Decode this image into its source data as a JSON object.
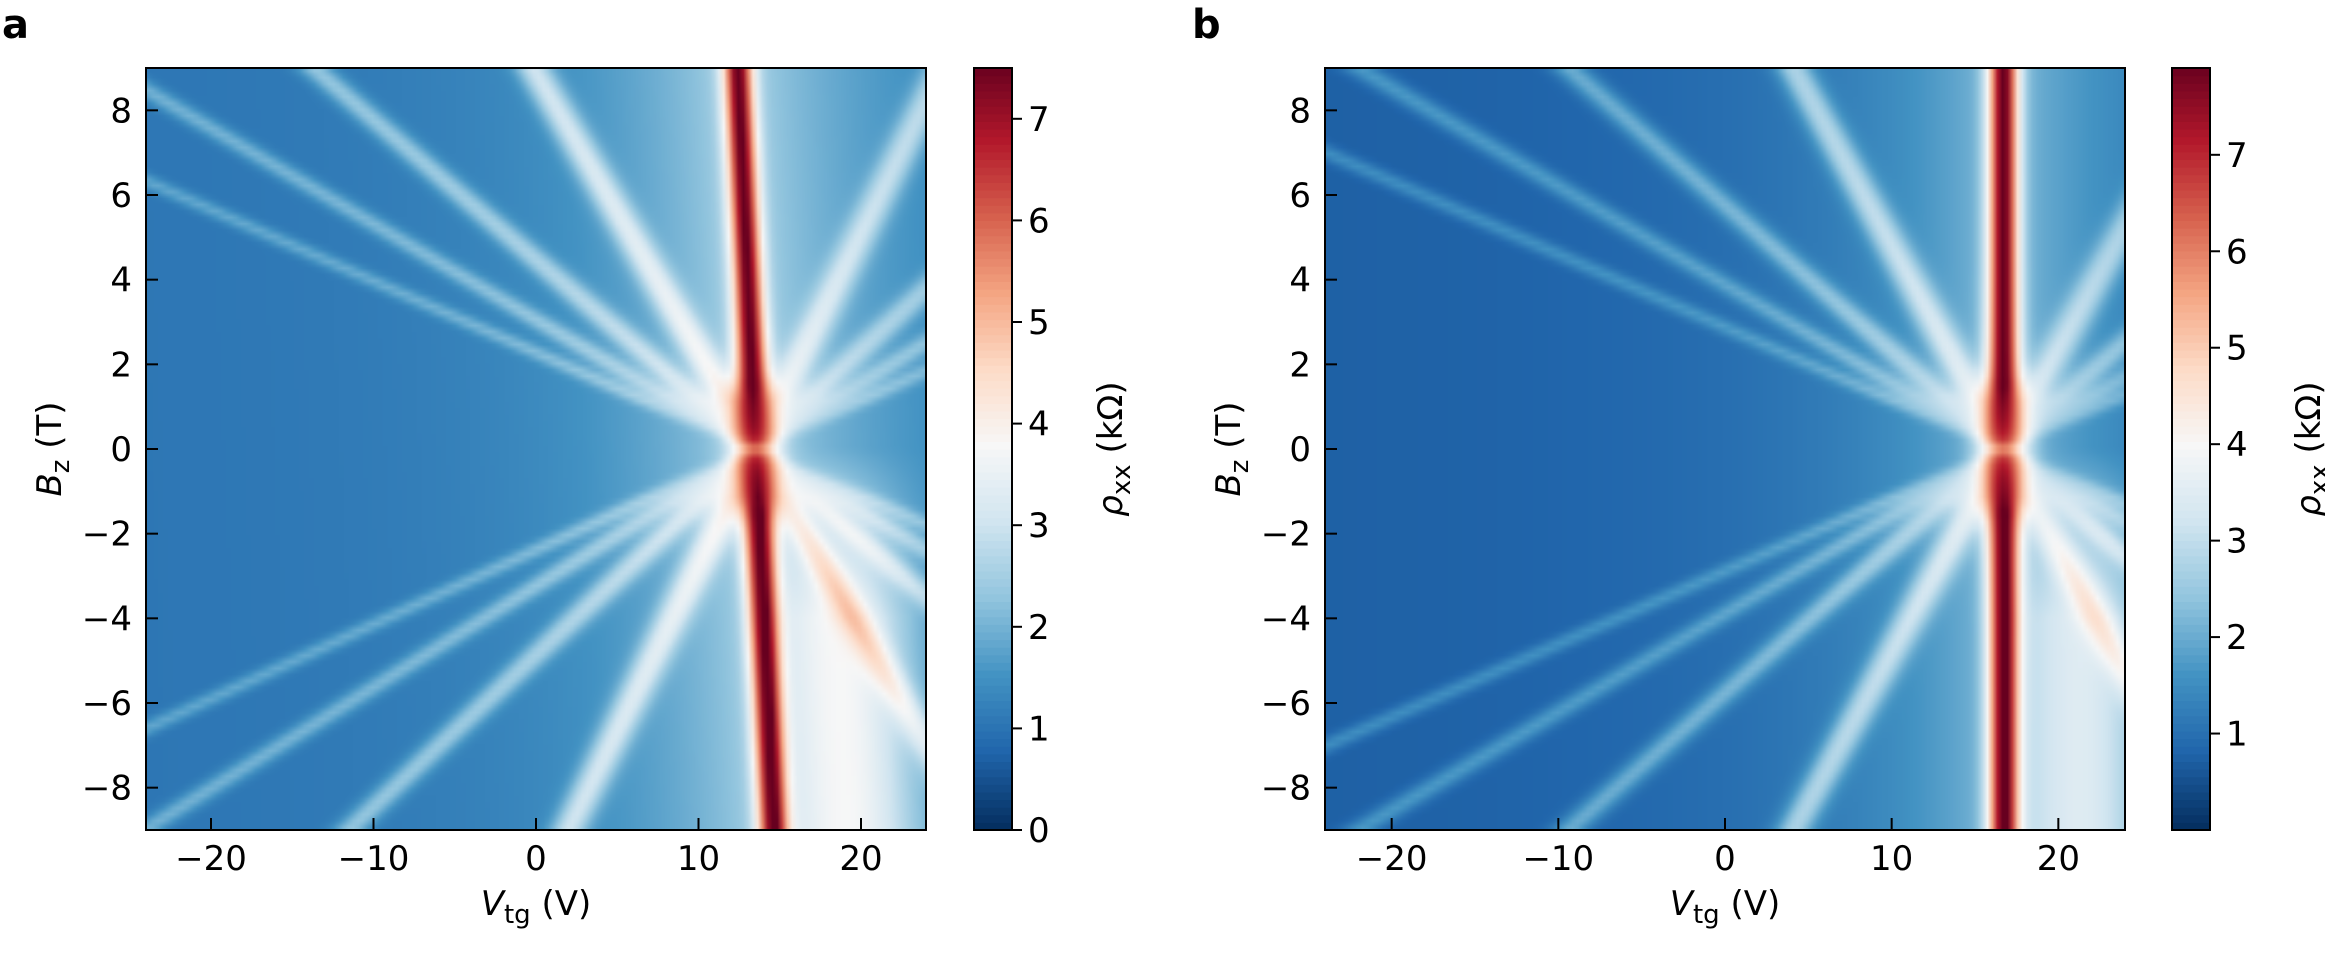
{
  "chart_data": [
    {
      "type": "heatmap",
      "panel_label": "a",
      "xlabel": {
        "symbol": "V",
        "subscript": "tg",
        "unit": " (V)"
      },
      "ylabel": {
        "symbol": "B",
        "subscript": "z",
        "unit": " (T)"
      },
      "xlim": [
        -24,
        24
      ],
      "ylim": [
        -9,
        9
      ],
      "xticks": [
        -20,
        -10,
        0,
        10,
        20
      ],
      "yticks": [
        -8,
        -6,
        -4,
        -2,
        0,
        2,
        4,
        6,
        8
      ],
      "colorbar": {
        "label": {
          "symbol": "ρ",
          "subscript": "xx",
          "unit": " (kΩ)"
        },
        "range": [
          0,
          7.5
        ],
        "ticks": [
          0,
          1,
          2,
          3,
          4,
          5,
          6,
          7
        ],
        "colormap": "RdBu_r"
      },
      "features": {
        "cnp_vtg_at_zero_field": 13.5,
        "cnp_tilt_v_per_tesla": 0.12,
        "peak_resistance_kohm": 7.4,
        "background_resistance_kohm": 1.0
      }
    },
    {
      "type": "heatmap",
      "panel_label": "b",
      "xlabel": {
        "symbol": "V",
        "subscript": "tg",
        "unit": " (V)"
      },
      "ylabel": {
        "symbol": "B",
        "subscript": "z",
        "unit": " (T)"
      },
      "xlim": [
        -24,
        24
      ],
      "ylim": [
        -9,
        9
      ],
      "xticks": [
        -20,
        -10,
        0,
        10,
        20
      ],
      "yticks": [
        -8,
        -6,
        -4,
        -2,
        0,
        2,
        4,
        6,
        8
      ],
      "colorbar": {
        "label": {
          "symbol": "ρ",
          "subscript": "xx",
          "unit": " (kΩ)"
        },
        "range": [
          0,
          7.9
        ],
        "ticks": [
          1,
          2,
          3,
          4,
          5,
          6,
          7
        ],
        "colormap": "RdBu_r"
      },
      "features": {
        "cnp_vtg_at_zero_field": 16.7,
        "cnp_tilt_v_per_tesla": 0.0,
        "peak_resistance_kohm": 7.8,
        "background_resistance_kohm": 0.7
      }
    }
  ]
}
